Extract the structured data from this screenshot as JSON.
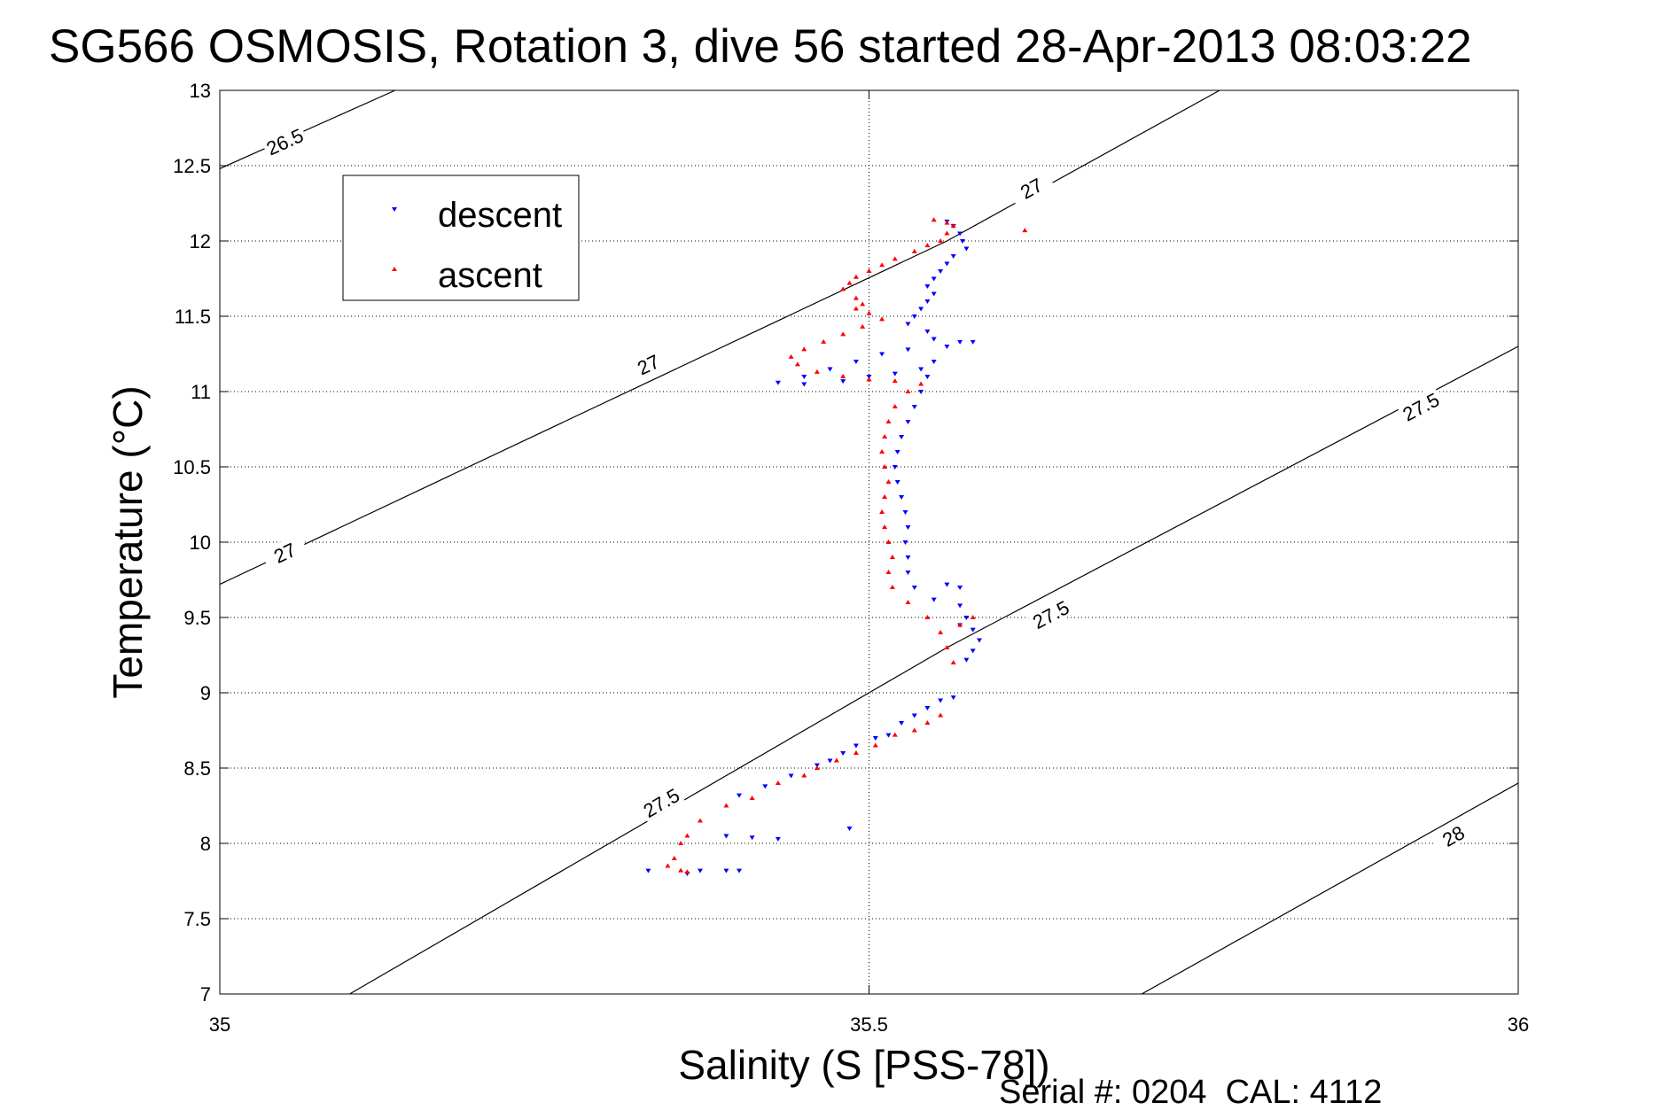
{
  "chart_data": {
    "type": "scatter",
    "title": "SG566 OSMOSIS, Rotation 3, dive 56 started 28-Apr-2013 08:03:22",
    "xlabel": "Salinity (S [PSS-78])",
    "ylabel": "Temperature (°C)",
    "xlim": [
      35,
      36
    ],
    "ylim": [
      7,
      13
    ],
    "x_ticks": [
      {
        "value": 35,
        "label": "35"
      },
      {
        "value": 35.5,
        "label": "35.5"
      },
      {
        "value": 36,
        "label": "36"
      }
    ],
    "y_ticks": [
      {
        "value": 7,
        "label": "7"
      },
      {
        "value": 7.5,
        "label": "7.5"
      },
      {
        "value": 8,
        "label": "8"
      },
      {
        "value": 8.5,
        "label": "8.5"
      },
      {
        "value": 9,
        "label": "9"
      },
      {
        "value": 9.5,
        "label": "9.5"
      },
      {
        "value": 10,
        "label": "10"
      },
      {
        "value": 10.5,
        "label": "10.5"
      },
      {
        "value": 11,
        "label": "11"
      },
      {
        "value": 11.5,
        "label": "11.5"
      },
      {
        "value": 12,
        "label": "12"
      },
      {
        "value": 12.5,
        "label": "12.5"
      },
      {
        "value": 13,
        "label": "13"
      }
    ],
    "grid": true,
    "legend_position": "top-left",
    "isopycnals": [
      {
        "label": "26.5",
        "points": [
          [
            35.0,
            12.48
          ],
          [
            35.135,
            13.0
          ]
        ],
        "labels_at": [
          [
            35.05,
            12.66
          ]
        ]
      },
      {
        "label": "27",
        "points": [
          [
            35.0,
            9.72
          ],
          [
            35.56,
            12.0
          ],
          [
            35.77,
            13.0
          ]
        ],
        "labels_at": [
          [
            35.05,
            9.93
          ],
          [
            35.33,
            11.18
          ],
          [
            35.625,
            12.35
          ]
        ]
      },
      {
        "label": "27.5",
        "points": [
          [
            35.1,
            7.0
          ],
          [
            35.56,
            9.3
          ],
          [
            36.0,
            11.3
          ]
        ],
        "labels_at": [
          [
            35.34,
            8.27
          ],
          [
            35.64,
            9.52
          ],
          [
            35.925,
            10.9
          ]
        ]
      },
      {
        "label": "28",
        "points": [
          [
            35.71,
            7.0
          ],
          [
            36.0,
            8.4
          ]
        ],
        "labels_at": [
          [
            35.95,
            8.05
          ]
        ]
      }
    ],
    "series": [
      {
        "name": "descent",
        "color": "#0000ff",
        "marker": "triangle-down",
        "points": [
          [
            35.56,
            12.13
          ],
          [
            35.565,
            12.1
          ],
          [
            35.57,
            12.05
          ],
          [
            35.572,
            12.0
          ],
          [
            35.575,
            11.95
          ],
          [
            35.565,
            11.9
          ],
          [
            35.56,
            11.85
          ],
          [
            35.555,
            11.8
          ],
          [
            35.55,
            11.75
          ],
          [
            35.545,
            11.7
          ],
          [
            35.55,
            11.65
          ],
          [
            35.545,
            11.6
          ],
          [
            35.54,
            11.55
          ],
          [
            35.535,
            11.5
          ],
          [
            35.53,
            11.45
          ],
          [
            35.545,
            11.4
          ],
          [
            35.55,
            11.35
          ],
          [
            35.57,
            11.33
          ],
          [
            35.58,
            11.33
          ],
          [
            35.56,
            11.3
          ],
          [
            35.53,
            11.28
          ],
          [
            35.51,
            11.25
          ],
          [
            35.49,
            11.2
          ],
          [
            35.47,
            11.15
          ],
          [
            35.45,
            11.1
          ],
          [
            35.43,
            11.06
          ],
          [
            35.45,
            11.05
          ],
          [
            35.48,
            11.07
          ],
          [
            35.5,
            11.1
          ],
          [
            35.52,
            11.12
          ],
          [
            35.54,
            11.15
          ],
          [
            35.55,
            11.2
          ],
          [
            35.545,
            11.1
          ],
          [
            35.54,
            11.0
          ],
          [
            35.535,
            10.9
          ],
          [
            35.53,
            10.8
          ],
          [
            35.525,
            10.7
          ],
          [
            35.522,
            10.6
          ],
          [
            35.52,
            10.5
          ],
          [
            35.522,
            10.4
          ],
          [
            35.525,
            10.3
          ],
          [
            35.528,
            10.2
          ],
          [
            35.53,
            10.1
          ],
          [
            35.528,
            10.0
          ],
          [
            35.53,
            9.9
          ],
          [
            35.53,
            9.8
          ],
          [
            35.535,
            9.7
          ],
          [
            35.55,
            9.62
          ],
          [
            35.57,
            9.58
          ],
          [
            35.575,
            9.5
          ],
          [
            35.58,
            9.42
          ],
          [
            35.585,
            9.35
          ],
          [
            35.58,
            9.28
          ],
          [
            35.575,
            9.22
          ],
          [
            35.57,
            9.7
          ],
          [
            35.56,
            9.72
          ],
          [
            35.57,
            9.45
          ],
          [
            35.565,
            8.97
          ],
          [
            35.555,
            8.95
          ],
          [
            35.545,
            8.9
          ],
          [
            35.535,
            8.85
          ],
          [
            35.525,
            8.8
          ],
          [
            35.515,
            8.72
          ],
          [
            35.505,
            8.7
          ],
          [
            35.49,
            8.65
          ],
          [
            35.48,
            8.6
          ],
          [
            35.47,
            8.55
          ],
          [
            35.46,
            8.52
          ],
          [
            35.44,
            8.45
          ],
          [
            35.42,
            8.38
          ],
          [
            35.4,
            8.32
          ],
          [
            35.485,
            8.1
          ],
          [
            35.43,
            8.03
          ],
          [
            35.41,
            8.04
          ],
          [
            35.39,
            8.05
          ],
          [
            35.33,
            7.82
          ],
          [
            35.37,
            7.82
          ],
          [
            35.39,
            7.82
          ],
          [
            35.4,
            7.82
          ],
          [
            35.36,
            7.8
          ]
        ]
      },
      {
        "name": "ascent",
        "color": "#ff0000",
        "marker": "triangle-up",
        "points": [
          [
            35.55,
            12.14
          ],
          [
            35.56,
            12.12
          ],
          [
            35.565,
            12.1
          ],
          [
            35.56,
            12.05
          ],
          [
            35.555,
            12.0
          ],
          [
            35.545,
            11.97
          ],
          [
            35.535,
            11.93
          ],
          [
            35.52,
            11.88
          ],
          [
            35.51,
            11.84
          ],
          [
            35.5,
            11.8
          ],
          [
            35.49,
            11.76
          ],
          [
            35.485,
            11.72
          ],
          [
            35.48,
            11.68
          ],
          [
            35.49,
            11.62
          ],
          [
            35.495,
            11.58
          ],
          [
            35.49,
            11.55
          ],
          [
            35.5,
            11.52
          ],
          [
            35.51,
            11.48
          ],
          [
            35.495,
            11.43
          ],
          [
            35.48,
            11.38
          ],
          [
            35.465,
            11.33
          ],
          [
            35.45,
            11.28
          ],
          [
            35.44,
            11.23
          ],
          [
            35.445,
            11.18
          ],
          [
            35.46,
            11.13
          ],
          [
            35.48,
            11.1
          ],
          [
            35.5,
            11.08
          ],
          [
            35.52,
            11.07
          ],
          [
            35.54,
            11.05
          ],
          [
            35.53,
            11.0
          ],
          [
            35.52,
            10.9
          ],
          [
            35.515,
            10.8
          ],
          [
            35.512,
            10.7
          ],
          [
            35.51,
            10.6
          ],
          [
            35.512,
            10.5
          ],
          [
            35.515,
            10.4
          ],
          [
            35.512,
            10.3
          ],
          [
            35.51,
            10.2
          ],
          [
            35.512,
            10.1
          ],
          [
            35.515,
            10.0
          ],
          [
            35.518,
            9.9
          ],
          [
            35.515,
            9.8
          ],
          [
            35.518,
            9.7
          ],
          [
            35.53,
            9.6
          ],
          [
            35.545,
            9.5
          ],
          [
            35.555,
            9.4
          ],
          [
            35.56,
            9.3
          ],
          [
            35.565,
            9.2
          ],
          [
            35.57,
            9.45
          ],
          [
            35.58,
            9.5
          ],
          [
            35.62,
            12.07
          ],
          [
            35.555,
            8.85
          ],
          [
            35.545,
            8.8
          ],
          [
            35.535,
            8.75
          ],
          [
            35.52,
            8.72
          ],
          [
            35.505,
            8.65
          ],
          [
            35.49,
            8.6
          ],
          [
            35.475,
            8.55
          ],
          [
            35.46,
            8.5
          ],
          [
            35.45,
            8.45
          ],
          [
            35.43,
            8.4
          ],
          [
            35.41,
            8.3
          ],
          [
            35.39,
            8.25
          ],
          [
            35.37,
            8.15
          ],
          [
            35.36,
            8.05
          ],
          [
            35.355,
            8.0
          ],
          [
            35.35,
            7.9
          ],
          [
            35.345,
            7.85
          ],
          [
            35.355,
            7.82
          ],
          [
            35.36,
            7.81
          ]
        ]
      }
    ],
    "annotation": "Serial #: 0204  CAL: 4112"
  }
}
